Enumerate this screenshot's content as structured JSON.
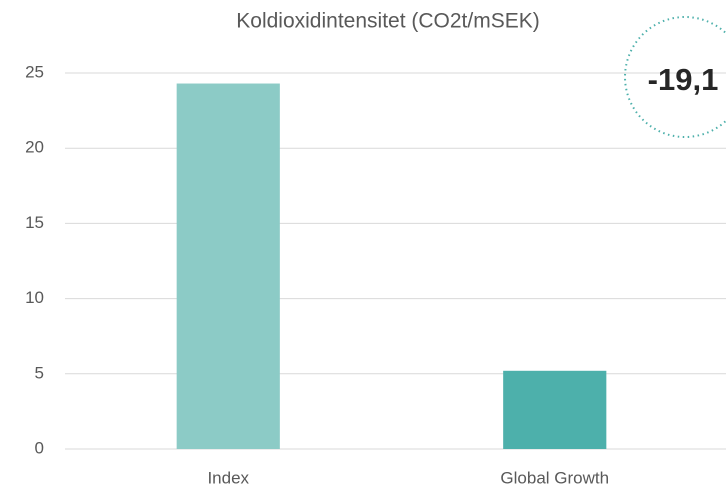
{
  "chart_data": {
    "type": "bar",
    "title": "Koldioxidintensitet (CO2t/mSEK)",
    "categories": [
      "Index",
      "Global Growth"
    ],
    "values": [
      24.3,
      5.2
    ],
    "colors": [
      "#8ccbc6",
      "#4db0ab"
    ],
    "ylim": [
      0,
      25
    ],
    "yticks": [
      0,
      5,
      10,
      15,
      20,
      25
    ],
    "grid": true,
    "annotation": "-19,1"
  }
}
